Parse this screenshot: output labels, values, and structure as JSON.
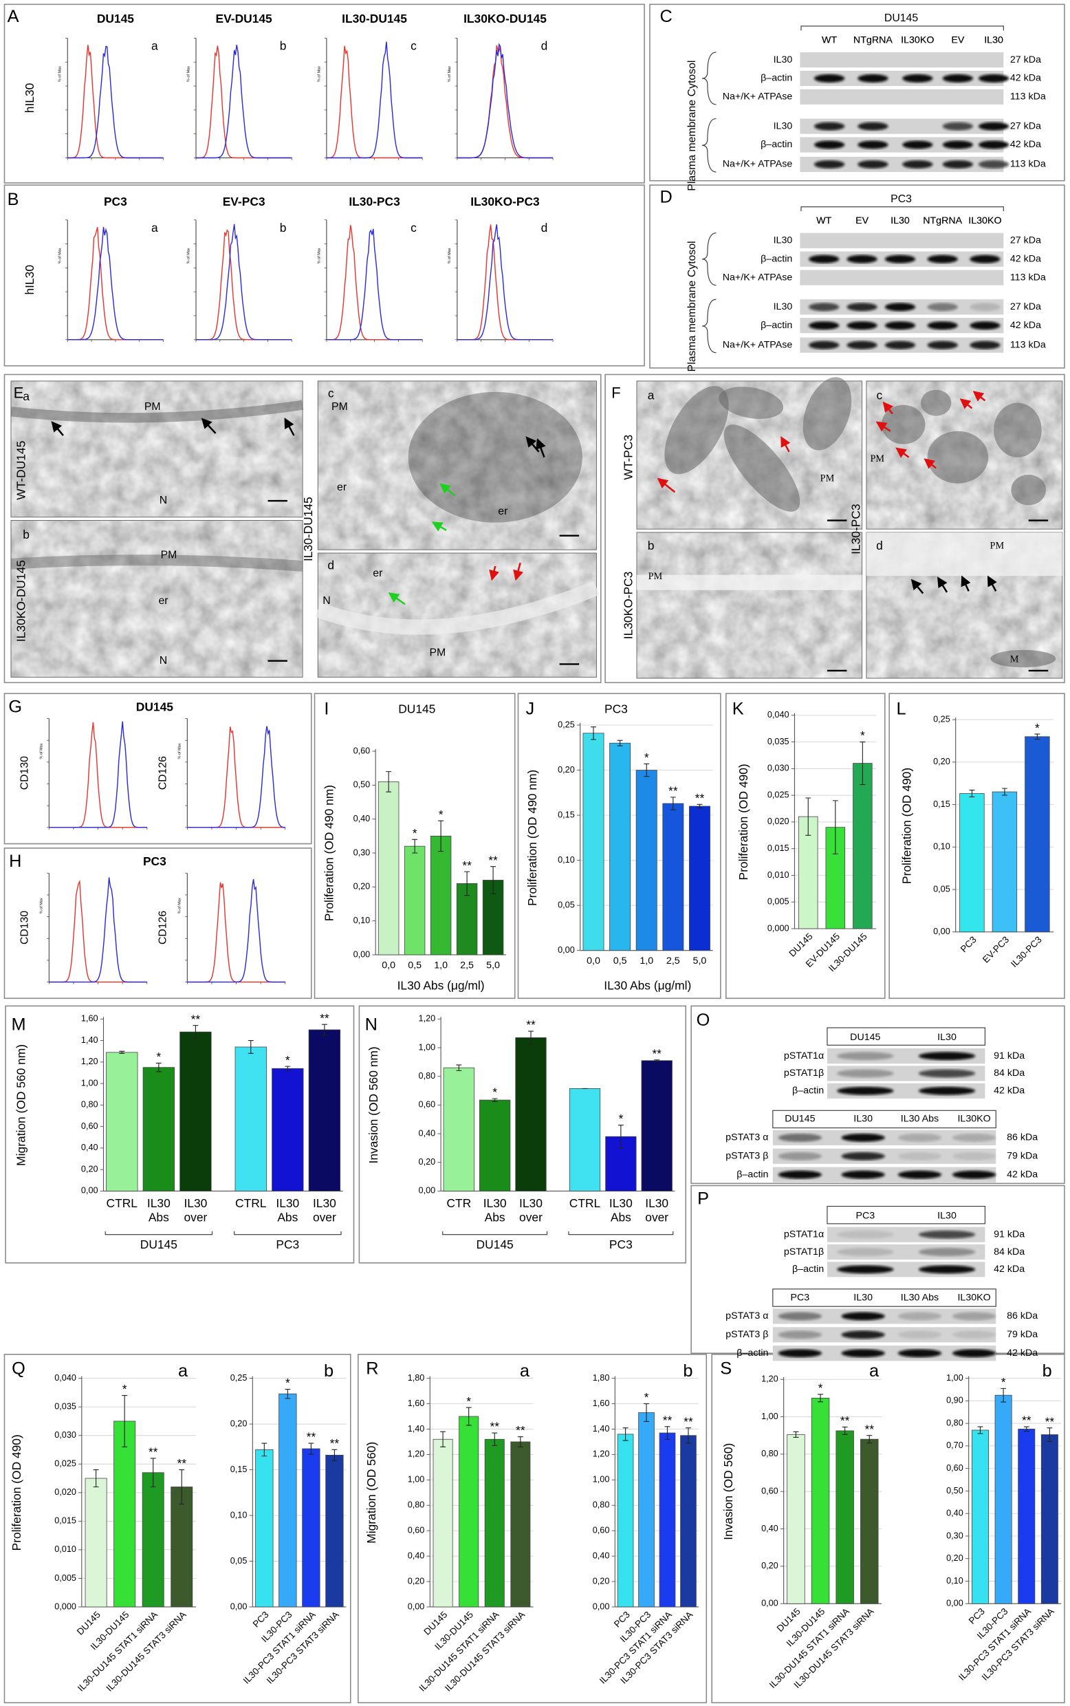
{
  "A": {
    "label": "A",
    "axis_label": "hIL30",
    "y_unit": "% of Max",
    "plots": [
      {
        "title": "DU145",
        "tag": "a"
      },
      {
        "title": "EV-DU145",
        "tag": "b"
      },
      {
        "title": "IL30-DU145",
        "tag": "c"
      },
      {
        "title": "IL30KO-DU145",
        "tag": "d"
      }
    ]
  },
  "B": {
    "label": "B",
    "axis_label": "hIL30",
    "y_unit": "% of Max",
    "plots": [
      {
        "title": "PC3",
        "tag": "a"
      },
      {
        "title": "EV-PC3",
        "tag": "b"
      },
      {
        "title": "IL30-PC3",
        "tag": "c"
      },
      {
        "title": "IL30KO-PC3",
        "tag": "d"
      }
    ]
  },
  "C": {
    "label": "C",
    "cell_line": "DU145",
    "lanes": [
      "WT",
      "NTgRNA",
      "IL30KO",
      "EV",
      "IL30"
    ],
    "fractions": [
      "Cytosol",
      "Plasma membrane"
    ],
    "proteins": [
      "IL30",
      "β–actin",
      "Na+/K+ ATPAse"
    ],
    "sizes": [
      "27 kDa",
      "42 kDa",
      "113 kDa"
    ]
  },
  "D": {
    "label": "D",
    "cell_line": "PC3",
    "lanes": [
      "WT",
      "EV",
      "IL30",
      "NTgRNA",
      "IL30KO"
    ],
    "fractions": [
      "Cytosol",
      "Plasma membrane"
    ],
    "proteins": [
      "IL30",
      "β–actin",
      "Na+/K+ ATPAse"
    ],
    "sizes": [
      "27 kDa",
      "42 kDa",
      "113 kDa"
    ]
  },
  "E": {
    "label": "E",
    "group_label": "IL30-DU145",
    "images": [
      {
        "tag": "a",
        "side_label": "WT-DU145",
        "labels": [
          "PM",
          "N"
        ]
      },
      {
        "tag": "b",
        "side_label": "IL30KO-DU145",
        "labels": [
          "PM",
          "er",
          "N"
        ]
      },
      {
        "tag": "c",
        "labels": [
          "PM",
          "er",
          "er"
        ]
      },
      {
        "tag": "d",
        "labels": [
          "er",
          "N",
          "PM"
        ]
      }
    ]
  },
  "F": {
    "label": "F",
    "group_label": "IL30-PC3",
    "images": [
      {
        "tag": "a",
        "side_label": "WT-PC3",
        "labels": [
          "PM"
        ]
      },
      {
        "tag": "b",
        "side_label": "IL30KO-PC3",
        "labels": [
          "PM"
        ]
      },
      {
        "tag": "c",
        "labels": [
          "PM"
        ]
      },
      {
        "tag": "d",
        "labels": [
          "PM",
          "M"
        ]
      }
    ]
  },
  "G": {
    "label": "G",
    "title": "DU145",
    "y_unit": "% of Max",
    "plots": [
      {
        "axis_label": "CD130"
      },
      {
        "axis_label": "CD126"
      }
    ]
  },
  "H": {
    "label": "H",
    "title": "PC3",
    "y_unit": "% of Max",
    "plots": [
      {
        "axis_label": "CD130"
      },
      {
        "axis_label": "CD126"
      }
    ]
  },
  "O": {
    "label": "O",
    "blots": [
      {
        "lanes": [
          "DU145",
          "IL30"
        ],
        "proteins": [
          "pSTAT1α",
          "pSTAT1β",
          "β–actin"
        ],
        "sizes": [
          "91 kDa",
          "84 kDa",
          "42 kDa"
        ]
      },
      {
        "lanes": [
          "DU145",
          "IL30",
          "IL30 Abs",
          "IL30KO"
        ],
        "proteins": [
          "pSTAT3 α",
          "pSTAT3 β",
          "β–actin"
        ],
        "sizes": [
          "86 kDa",
          "79 kDa",
          "42 kDa"
        ]
      }
    ]
  },
  "P": {
    "label": "P",
    "blots": [
      {
        "lanes": [
          "PC3",
          "IL30"
        ],
        "proteins": [
          "pSTAT1α",
          "pSTAT1β",
          "β–actin"
        ],
        "sizes": [
          "91 kDa",
          "84 kDa",
          "42 kDa"
        ]
      },
      {
        "lanes": [
          "PC3",
          "IL30",
          "IL30 Abs",
          "IL30KO"
        ],
        "proteins": [
          "pSTAT3 α",
          "pSTAT3 β",
          "β–actin"
        ],
        "sizes": [
          "86 kDa",
          "79 kDa",
          "42 kDa"
        ]
      }
    ]
  },
  "chart_data": [
    {
      "type": "bar",
      "label": "I",
      "title": "DU145",
      "ylabel": "Proliferation (OD 490 nm)",
      "xlabel": "IL30 Abs  (μg/ml)",
      "categories": [
        "0,0",
        "0,5",
        "1,0",
        "2,5",
        "5,0"
      ],
      "values": [
        0.51,
        0.32,
        0.35,
        0.21,
        0.22
      ],
      "errors": [
        0.03,
        0.02,
        0.045,
        0.035,
        0.04
      ],
      "significance": [
        null,
        "*",
        "*",
        "**",
        "**"
      ],
      "colors": [
        "#c9f2c4",
        "#6fe26a",
        "#35b832",
        "#1f8a1f",
        "#0f5a12"
      ],
      "grid": false,
      "ylim": [
        0,
        0.6
      ],
      "yticks": [
        {
          "value": 0,
          "label": "0,00"
        },
        {
          "value": 0.1,
          "label": "0,10"
        },
        {
          "value": 0.2,
          "label": "0,20"
        },
        {
          "value": 0.3,
          "label": "0,30"
        },
        {
          "value": 0.4,
          "label": "0,40"
        },
        {
          "value": 0.5,
          "label": "0,50"
        },
        {
          "value": 0.6,
          "label": "0,60"
        }
      ]
    },
    {
      "type": "bar",
      "label": "J",
      "title": "PC3",
      "ylabel": "Proliferation (OD 490 nm)",
      "xlabel": "IL30 Abs  (μg/ml)",
      "categories": [
        "0,0",
        "0,5",
        "1,0",
        "2,5",
        "5,0"
      ],
      "values": [
        0.241,
        0.23,
        0.2,
        0.163,
        0.16
      ],
      "errors": [
        0.007,
        0.003,
        0.007,
        0.007,
        0.002
      ],
      "significance": [
        null,
        null,
        "*",
        "**",
        "**"
      ],
      "colors": [
        "#3fdcec",
        "#28b6ee",
        "#1d8ae8",
        "#1656dc",
        "#0b2ed2"
      ],
      "grid": true,
      "ylim": [
        0,
        0.25
      ],
      "yticks": [
        {
          "value": 0,
          "label": "0,00"
        },
        {
          "value": 0.05,
          "label": "0,05"
        },
        {
          "value": 0.1,
          "label": "0,10"
        },
        {
          "value": 0.15,
          "label": "0,15"
        },
        {
          "value": 0.2,
          "label": "0,20"
        },
        {
          "value": 0.25,
          "label": "0,25"
        }
      ]
    },
    {
      "type": "bar",
      "label": "K",
      "ylabel": "Proliferation (OD 490)",
      "categories": [
        "DU145",
        "EV-DU145",
        "IL30-DU145"
      ],
      "values": [
        0.021,
        0.019,
        0.031
      ],
      "errors": [
        0.0035,
        0.005,
        0.004
      ],
      "significance": [
        null,
        null,
        "*"
      ],
      "colors": [
        "#ccf5c8",
        "#38e038",
        "#23a853"
      ],
      "grid": true,
      "ylim": [
        0,
        0.04
      ],
      "yticks": [
        {
          "value": 0,
          "label": "0,000"
        },
        {
          "value": 0.005,
          "label": "0,005"
        },
        {
          "value": 0.01,
          "label": "0,010"
        },
        {
          "value": 0.015,
          "label": "0,015"
        },
        {
          "value": 0.02,
          "label": "0,020"
        },
        {
          "value": 0.025,
          "label": "0,025"
        },
        {
          "value": 0.03,
          "label": "0,030"
        },
        {
          "value": 0.035,
          "label": "0,035"
        },
        {
          "value": 0.04,
          "label": "0,040"
        }
      ]
    },
    {
      "type": "bar",
      "label": "L",
      "ylabel": "Proliferation (OD 490)",
      "categories": [
        "PC3",
        "EV-PC3",
        "IL30-PC3"
      ],
      "values": [
        0.163,
        0.165,
        0.23
      ],
      "errors": [
        0.004,
        0.004,
        0.003
      ],
      "significance": [
        null,
        null,
        "*"
      ],
      "colors": [
        "#33e6ee",
        "#3cc0f5",
        "#1b5ad5"
      ],
      "grid": true,
      "ylim": [
        0,
        0.25
      ],
      "yticks": [
        {
          "value": 0,
          "label": "0,00"
        },
        {
          "value": 0.05,
          "label": "0,05"
        },
        {
          "value": 0.1,
          "label": "0,10"
        },
        {
          "value": 0.15,
          "label": "0,15"
        },
        {
          "value": 0.2,
          "label": "0,20"
        },
        {
          "value": 0.25,
          "label": "0,25"
        }
      ]
    },
    {
      "type": "bar",
      "label": "M",
      "ylabel": "Migration (OD 560 nm)",
      "groups": [
        "DU145",
        "PC3"
      ],
      "categories": [
        [
          "CTRL"
        ],
        [
          "IL30",
          "Abs"
        ],
        [
          "IL30",
          "over"
        ],
        [
          "CTRL"
        ],
        [
          "IL30",
          "Abs"
        ],
        [
          "IL30",
          "over"
        ]
      ],
      "values": [
        1.29,
        1.15,
        1.48,
        1.34,
        1.14,
        1.5
      ],
      "errors": [
        0.01,
        0.04,
        0.06,
        0.06,
        0.02,
        0.05
      ],
      "significance": [
        null,
        "*",
        "**",
        null,
        "*",
        "**"
      ],
      "colors": [
        "#98f098",
        "#1a8c1a",
        "#0a3d0a",
        "#40e2f2",
        "#1212d2",
        "#0a0a62"
      ],
      "grid": false,
      "ylim": [
        0,
        1.6
      ],
      "yticks": [
        {
          "value": 0,
          "label": "0,00"
        },
        {
          "value": 0.2,
          "label": "0,20"
        },
        {
          "value": 0.4,
          "label": "0,40"
        },
        {
          "value": 0.6,
          "label": "0,60"
        },
        {
          "value": 0.8,
          "label": "0,80"
        },
        {
          "value": 1,
          "label": "1,00"
        },
        {
          "value": 1.2,
          "label": "1,20"
        },
        {
          "value": 1.4,
          "label": "1,40"
        },
        {
          "value": 1.6,
          "label": "1,60"
        }
      ]
    },
    {
      "type": "bar",
      "label": "N",
      "ylabel": "Invasion (OD 560 nm)",
      "groups": [
        "DU145",
        "PC3"
      ],
      "categories": [
        [
          "CTR"
        ],
        [
          "IL30",
          "Abs"
        ],
        [
          "IL30",
          "over"
        ],
        [
          "CTRL"
        ],
        [
          "IL30",
          "Abs"
        ],
        [
          "IL30",
          "over"
        ]
      ],
      "values": [
        0.86,
        0.635,
        1.07,
        0.715,
        0.38,
        0.91
      ],
      "errors": [
        0.02,
        0.01,
        0.045,
        0,
        0.08,
        0.005
      ],
      "significance": [
        null,
        "*",
        "**",
        null,
        "*",
        "**"
      ],
      "colors": [
        "#98f098",
        "#1a8c1a",
        "#0a3d0a",
        "#40e2f2",
        "#1212d2",
        "#0a0a62"
      ],
      "grid": false,
      "ylim": [
        0,
        1.2
      ],
      "yticks": [
        {
          "value": 0,
          "label": "0,00"
        },
        {
          "value": 0.2,
          "label": "0,20"
        },
        {
          "value": 0.4,
          "label": "0,40"
        },
        {
          "value": 0.6,
          "label": "0,60"
        },
        {
          "value": 0.8,
          "label": "0,80"
        },
        {
          "value": 1,
          "label": "1,00"
        },
        {
          "value": 1.2,
          "label": "1,20"
        }
      ]
    },
    {
      "type": "bar",
      "label": "Q",
      "tag": "a",
      "ylabel": "Proliferation (OD 490)",
      "categories": [
        "DU145",
        "IL30-DU145",
        "IL30-DU145 STAT1 siRNA",
        "IL30-DU145 STAT3 siRNA"
      ],
      "values": [
        0.0225,
        0.0325,
        0.0235,
        0.021
      ],
      "errors": [
        0.0015,
        0.0045,
        0.0025,
        0.003
      ],
      "significance": [
        null,
        "*",
        "**",
        "**"
      ],
      "colors": [
        "#daf6d6",
        "#36e036",
        "#1f9a22",
        "#3c5a2c"
      ],
      "grid": true,
      "ylim": [
        0,
        0.04
      ],
      "yticks": [
        {
          "value": 0,
          "label": "0,000"
        },
        {
          "value": 0.005,
          "label": "0,005"
        },
        {
          "value": 0.01,
          "label": "0,010"
        },
        {
          "value": 0.015,
          "label": "0,015"
        },
        {
          "value": 0.02,
          "label": "0,020"
        },
        {
          "value": 0.025,
          "label": "0,025"
        },
        {
          "value": 0.03,
          "label": "0,030"
        },
        {
          "value": 0.035,
          "label": "0,035"
        },
        {
          "value": 0.04,
          "label": "0,040"
        }
      ]
    },
    {
      "type": "bar",
      "tag": "b",
      "categories": [
        "PC3",
        "IL30-PC3",
        "IL30-PC3 STAT1 siRNA",
        "IL30-PC3 STAT3 siRNA"
      ],
      "values": [
        0.172,
        0.233,
        0.173,
        0.166
      ],
      "errors": [
        0.007,
        0.005,
        0.006,
        0.006
      ],
      "significance": [
        null,
        "*",
        "**",
        "**"
      ],
      "colors": [
        "#36e2f0",
        "#36aaf8",
        "#1a3cee",
        "#1a3aa2"
      ],
      "grid": true,
      "ylim": [
        0,
        0.25
      ],
      "yticks": [
        {
          "value": 0,
          "label": "0,00"
        },
        {
          "value": 0.05,
          "label": "0,05"
        },
        {
          "value": 0.1,
          "label": "0,10"
        },
        {
          "value": 0.15,
          "label": "0,15"
        },
        {
          "value": 0.2,
          "label": "0,20"
        },
        {
          "value": 0.25,
          "label": "0,25"
        }
      ]
    },
    {
      "type": "bar",
      "label": "R",
      "tag": "a",
      "ylabel": "Migration (OD 560)",
      "categories": [
        "DU145",
        "IL30-DU145",
        "IL30-DU145 STAT1 siRNA",
        "IL30-DU145 STAT3 siRNA"
      ],
      "values": [
        1.32,
        1.5,
        1.32,
        1.3
      ],
      "errors": [
        0.06,
        0.07,
        0.05,
        0.04
      ],
      "significance": [
        null,
        "*",
        "**",
        "**"
      ],
      "colors": [
        "#daf6d6",
        "#36e036",
        "#1f9a22",
        "#3c5a2c"
      ],
      "grid": true,
      "ylim": [
        0,
        1.8
      ],
      "yticks": [
        {
          "value": 0,
          "label": "0,00"
        },
        {
          "value": 0.2,
          "label": "0,20"
        },
        {
          "value": 0.4,
          "label": "0,40"
        },
        {
          "value": 0.6,
          "label": "0,60"
        },
        {
          "value": 0.8,
          "label": "0,80"
        },
        {
          "value": 1,
          "label": "1,00"
        },
        {
          "value": 1.2,
          "label": "1,20"
        },
        {
          "value": 1.4,
          "label": "1,40"
        },
        {
          "value": 1.6,
          "label": "1,60"
        },
        {
          "value": 1.8,
          "label": "1,80"
        }
      ]
    },
    {
      "type": "bar",
      "tag": "b",
      "categories": [
        "PC3",
        "IL30-PC3",
        "IL30-PC3 STAT1 siRNA",
        "IL30-PC3 STAT3 siRNA"
      ],
      "values": [
        1.36,
        1.53,
        1.37,
        1.35
      ],
      "errors": [
        0.05,
        0.07,
        0.05,
        0.06
      ],
      "significance": [
        null,
        "*",
        "**",
        "**"
      ],
      "colors": [
        "#36e2f0",
        "#36aaf8",
        "#1a3cee",
        "#1a3aa2"
      ],
      "grid": true,
      "ylim": [
        0,
        1.8
      ],
      "yticks": [
        {
          "value": 0,
          "label": "0,00"
        },
        {
          "value": 0.2,
          "label": "0,20"
        },
        {
          "value": 0.4,
          "label": "0,40"
        },
        {
          "value": 0.6,
          "label": "0,60"
        },
        {
          "value": 0.8,
          "label": "0,80"
        },
        {
          "value": 1,
          "label": "1,00"
        },
        {
          "value": 1.2,
          "label": "1,20"
        },
        {
          "value": 1.4,
          "label": "1,40"
        },
        {
          "value": 1.6,
          "label": "1,60"
        },
        {
          "value": 1.8,
          "label": "1,80"
        }
      ]
    },
    {
      "type": "bar",
      "label": "S",
      "tag": "a",
      "ylabel": "Invasion (OD 560)",
      "categories": [
        "DU145",
        "IL30-DU145",
        "IL30-DU145 STAT1 siRNA",
        "IL30-DU145 STAT3 siRNA"
      ],
      "values": [
        0.905,
        1.1,
        0.925,
        0.88
      ],
      "errors": [
        0.015,
        0.02,
        0.02,
        0.02
      ],
      "significance": [
        null,
        "*",
        "**",
        "**"
      ],
      "colors": [
        "#daf6d6",
        "#36e036",
        "#1f9a22",
        "#3c5a2c"
      ],
      "grid": true,
      "ylim": [
        0,
        1.2
      ],
      "yticks": [
        {
          "value": 0,
          "label": "0,00"
        },
        {
          "value": 0.2,
          "label": "0,20"
        },
        {
          "value": 0.4,
          "label": "0,40"
        },
        {
          "value": 0.6,
          "label": "0,60"
        },
        {
          "value": 0.8,
          "label": "0,80"
        },
        {
          "value": 1,
          "label": "1,00"
        },
        {
          "value": 1.2,
          "label": "1,20"
        }
      ]
    },
    {
      "type": "bar",
      "tag": "b",
      "categories": [
        "PC3",
        "IL30-PC3",
        "IL30-PC3 STAT1 siRNA",
        "IL30-PC3 STAT3 siRNA"
      ],
      "values": [
        0.77,
        0.925,
        0.775,
        0.75
      ],
      "errors": [
        0.015,
        0.03,
        0.01,
        0.03
      ],
      "significance": [
        null,
        "*",
        "**",
        "**"
      ],
      "colors": [
        "#36e2f0",
        "#36aaf8",
        "#1a3cee",
        "#1a3aa2"
      ],
      "grid": true,
      "ylim": [
        0,
        1
      ],
      "yticks": [
        {
          "value": 0,
          "label": "0,00"
        },
        {
          "value": 0.1,
          "label": "0,10"
        },
        {
          "value": 0.2,
          "label": "0,20"
        },
        {
          "value": 0.3,
          "label": "0,30"
        },
        {
          "value": 0.4,
          "label": "0,40"
        },
        {
          "value": 0.5,
          "label": "0,50"
        },
        {
          "value": 0.6,
          "label": "0,60"
        },
        {
          "value": 0.7,
          "label": "0,70"
        },
        {
          "value": 0.8,
          "label": "0,80"
        },
        {
          "value": 0.9,
          "label": "0,90"
        },
        {
          "value": 1,
          "label": "1,00"
        }
      ]
    }
  ]
}
